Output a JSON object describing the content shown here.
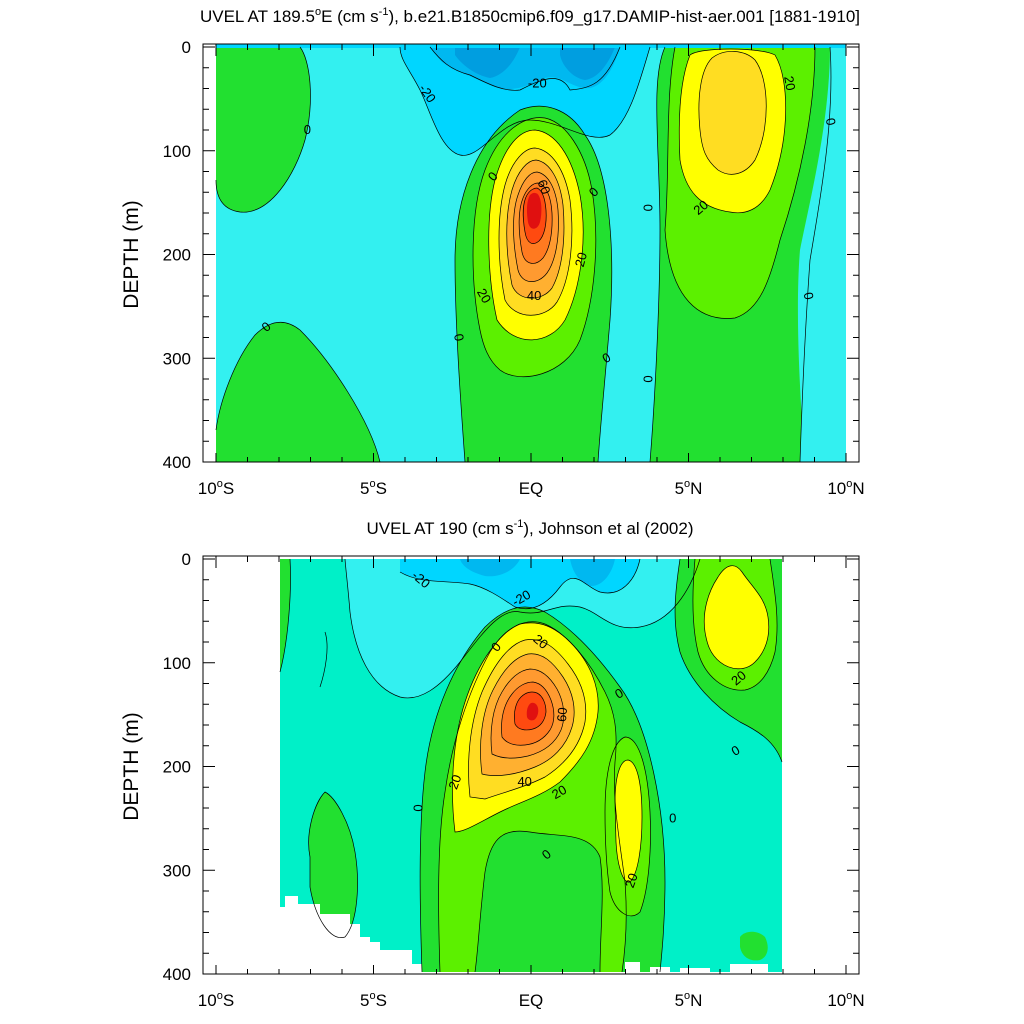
{
  "colors": {
    "c_neg30": "#00a8e8",
    "c_neg20": "#00d6ff",
    "c_neg10": "#33f0f0",
    "c_0": "#00f0c8",
    "c_pos": "#22e030",
    "c_10": "#5cf000",
    "c_20": "#ffff00",
    "c_30": "#ffdd22",
    "c_40": "#ffb030",
    "c_50": "#ff9a30",
    "c_60": "#ff7a20",
    "c_70": "#ff4a10",
    "c_80": "#e01010"
  },
  "chart_data": [
    {
      "type": "contour",
      "title_main": "UVEL AT 189.5",
      "title_sup1": "o",
      "title_mid": "E (cm s",
      "title_sup2": "-1",
      "title_end": "), b.e21.B1850cmip6.f09_g17.DAMIP-hist-aer.001 [1881-1910]",
      "ylabel": "DEPTH (m)",
      "xlim": [
        -10,
        10
      ],
      "ylim": [
        400,
        0
      ],
      "yticks": [
        "0",
        "100",
        "200",
        "300",
        "400"
      ],
      "xticks": [
        {
          "num": "10",
          "deg": "o",
          "hem": "S"
        },
        {
          "num": "5",
          "deg": "o",
          "hem": "S"
        },
        {
          "num": "EQ",
          "deg": "",
          "hem": ""
        },
        {
          "num": "5",
          "deg": "o",
          "hem": "N"
        },
        {
          "num": "10",
          "deg": "o",
          "hem": "N"
        }
      ],
      "contour_labels": [
        {
          "text": "-20",
          "x": -3.3,
          "y": 45,
          "rot": 55
        },
        {
          "text": "-20",
          "x": 0.2,
          "y": 35,
          "rot": 0
        },
        {
          "text": "0",
          "x": -7.1,
          "y": 80,
          "rot": 0
        },
        {
          "text": "0",
          "x": -1.2,
          "y": 125,
          "rot": -50
        },
        {
          "text": "60",
          "x": 0.4,
          "y": 135,
          "rot": 70
        },
        {
          "text": "0",
          "x": 2.0,
          "y": 140,
          "rot": -45
        },
        {
          "text": "0",
          "x": 3.7,
          "y": 155,
          "rot": 90
        },
        {
          "text": "20",
          "x": 5.4,
          "y": 155,
          "rot": -40
        },
        {
          "text": "20",
          "x": 8.2,
          "y": 35,
          "rot": 80
        },
        {
          "text": "0",
          "x": 9.5,
          "y": 72,
          "rot": 80
        },
        {
          "text": "20",
          "x": 1.6,
          "y": 205,
          "rot": -75
        },
        {
          "text": "20",
          "x": -1.5,
          "y": 240,
          "rot": 60
        },
        {
          "text": "40",
          "x": 0.1,
          "y": 240,
          "rot": 0
        },
        {
          "text": "0",
          "x": -8.4,
          "y": 270,
          "rot": -40
        },
        {
          "text": "0",
          "x": -2.3,
          "y": 280,
          "rot": 80
        },
        {
          "text": "0",
          "x": 2.4,
          "y": 300,
          "rot": -30
        },
        {
          "text": "0",
          "x": 3.7,
          "y": 320,
          "rot": 90
        },
        {
          "text": "0",
          "x": 8.8,
          "y": 240,
          "rot": 80
        }
      ]
    },
    {
      "type": "contour",
      "title_main": "UVEL AT 190 (cm s",
      "title_sup2": "-1",
      "title_end": "), Johnson et al (2002)",
      "ylabel": "DEPTH (m)",
      "xlim": [
        -10,
        10
      ],
      "ylim": [
        400,
        0
      ],
      "yticks": [
        "0",
        "100",
        "200",
        "300",
        "400"
      ],
      "xticks": [
        {
          "num": "10",
          "deg": "o",
          "hem": "S"
        },
        {
          "num": "5",
          "deg": "o",
          "hem": "S"
        },
        {
          "num": "EQ",
          "deg": "",
          "hem": ""
        },
        {
          "num": "5",
          "deg": "o",
          "hem": "N"
        },
        {
          "num": "10",
          "deg": "o",
          "hem": "N"
        }
      ],
      "contour_labels": [
        {
          "text": "-20",
          "x": -3.5,
          "y": 20,
          "rot": 40
        },
        {
          "text": "-20",
          "x": -0.3,
          "y": 38,
          "rot": -30
        },
        {
          "text": "20",
          "x": 0.3,
          "y": 80,
          "rot": 40
        },
        {
          "text": "0",
          "x": -1.1,
          "y": 85,
          "rot": -50
        },
        {
          "text": "0",
          "x": 2.8,
          "y": 130,
          "rot": -30
        },
        {
          "text": "60",
          "x": 1.0,
          "y": 150,
          "rot": -85
        },
        {
          "text": "20",
          "x": 6.6,
          "y": 115,
          "rot": -40
        },
        {
          "text": "0",
          "x": 6.5,
          "y": 185,
          "rot": -30
        },
        {
          "text": "20",
          "x": -2.4,
          "y": 215,
          "rot": -70
        },
        {
          "text": "40",
          "x": -0.2,
          "y": 215,
          "rot": 0
        },
        {
          "text": "20",
          "x": 0.9,
          "y": 225,
          "rot": -30
        },
        {
          "text": "0",
          "x": -3.6,
          "y": 240,
          "rot": 90
        },
        {
          "text": "0",
          "x": 4.5,
          "y": 250,
          "rot": 0
        },
        {
          "text": "0",
          "x": 0.5,
          "y": 285,
          "rot": -40
        },
        {
          "text": "20",
          "x": 3.2,
          "y": 310,
          "rot": -70
        }
      ]
    }
  ]
}
